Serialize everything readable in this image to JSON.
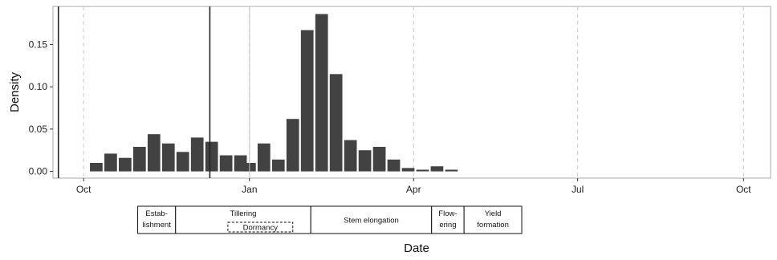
{
  "chart_data": {
    "type": "bar",
    "xlabel": "Date",
    "ylabel": "Density",
    "ylim": [
      -0.008,
      0.195
    ],
    "x_range": [
      "2015-09-14",
      "2016-10-16"
    ],
    "y_ticks": [
      {
        "value": 0.0,
        "label": "0.00"
      },
      {
        "value": 0.05,
        "label": "0.05"
      },
      {
        "value": 0.1,
        "label": "0.10"
      },
      {
        "value": 0.15,
        "label": "0.15"
      }
    ],
    "x_ticks": [
      {
        "date": "2015-10-01",
        "label": "Oct"
      },
      {
        "date": "2016-01-01",
        "label": "Jan"
      },
      {
        "date": "2016-04-01",
        "label": "Apr"
      },
      {
        "date": "2016-07-01",
        "label": "Jul"
      },
      {
        "date": "2016-10-01",
        "label": "Oct"
      }
    ],
    "bar_width_days": 7,
    "bars": [
      {
        "date": "2015-10-08",
        "value": 0.01
      },
      {
        "date": "2015-10-16",
        "value": 0.021
      },
      {
        "date": "2015-10-24",
        "value": 0.016
      },
      {
        "date": "2015-11-01",
        "value": 0.029
      },
      {
        "date": "2015-11-09",
        "value": 0.044
      },
      {
        "date": "2015-11-17",
        "value": 0.033
      },
      {
        "date": "2015-11-25",
        "value": 0.023
      },
      {
        "date": "2015-12-03",
        "value": 0.04
      },
      {
        "date": "2015-12-11",
        "value": 0.035
      },
      {
        "date": "2015-12-19",
        "value": 0.019
      },
      {
        "date": "2015-12-27",
        "value": 0.019
      },
      {
        "date": "2016-01-01",
        "value": 0.01
      },
      {
        "date": "2016-01-09",
        "value": 0.033
      },
      {
        "date": "2016-01-17",
        "value": 0.014
      },
      {
        "date": "2016-01-25",
        "value": 0.062
      },
      {
        "date": "2016-02-02",
        "value": 0.167
      },
      {
        "date": "2016-02-10",
        "value": 0.186
      },
      {
        "date": "2016-02-18",
        "value": 0.115
      },
      {
        "date": "2016-02-26",
        "value": 0.037
      },
      {
        "date": "2016-03-05",
        "value": 0.025
      },
      {
        "date": "2016-03-13",
        "value": 0.029
      },
      {
        "date": "2016-03-21",
        "value": 0.014
      },
      {
        "date": "2016-03-29",
        "value": 0.004
      },
      {
        "date": "2016-04-06",
        "value": 0.002
      },
      {
        "date": "2016-04-14",
        "value": 0.006
      },
      {
        "date": "2016-04-22",
        "value": 0.002
      }
    ],
    "vlines": [
      {
        "date": "2015-09-17",
        "style": "solid-dark"
      },
      {
        "date": "2015-12-10",
        "style": "solid-dark"
      },
      {
        "date": "2016-01-01",
        "style": "solid-light"
      }
    ],
    "grid": "dashed vertical lines at month ticks",
    "growth_stages": [
      {
        "label_lines": [
          "Estab-",
          "lishment"
        ],
        "start": "2015-10-31",
        "end": "2015-11-21"
      },
      {
        "label_lines": [
          "Tillering"
        ],
        "start": "2015-11-21",
        "end": "2016-02-04"
      },
      {
        "label_lines": [
          "Stem elongation"
        ],
        "start": "2016-02-04",
        "end": "2016-04-11"
      },
      {
        "label_lines": [
          "Flow-",
          "ering"
        ],
        "start": "2016-04-11",
        "end": "2016-04-29"
      },
      {
        "label_lines": [
          "Yield",
          "formation"
        ],
        "start": "2016-04-29",
        "end": "2016-05-31"
      }
    ],
    "dormancy": {
      "label": "Dormancy",
      "start": "2015-12-20",
      "end": "2016-01-25"
    }
  }
}
